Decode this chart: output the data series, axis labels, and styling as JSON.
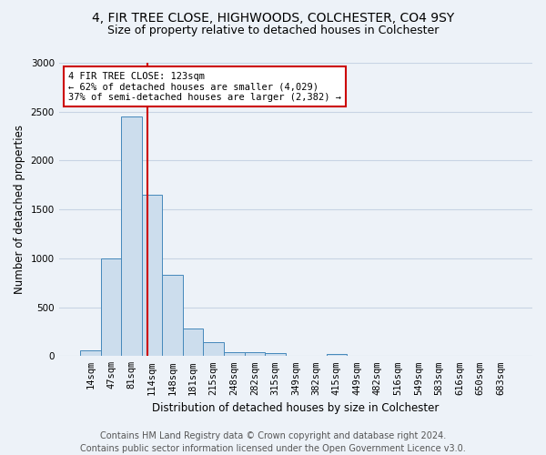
{
  "title": "4, FIR TREE CLOSE, HIGHWOODS, COLCHESTER, CO4 9SY",
  "subtitle": "Size of property relative to detached houses in Colchester",
  "xlabel": "Distribution of detached houses by size in Colchester",
  "ylabel": "Number of detached properties",
  "footer_line1": "Contains HM Land Registry data © Crown copyright and database right 2024.",
  "footer_line2": "Contains public sector information licensed under the Open Government Licence v3.0.",
  "bin_labels": [
    "14sqm",
    "47sqm",
    "81sqm",
    "114sqm",
    "148sqm",
    "181sqm",
    "215sqm",
    "248sqm",
    "282sqm",
    "315sqm",
    "349sqm",
    "382sqm",
    "415sqm",
    "449sqm",
    "482sqm",
    "516sqm",
    "549sqm",
    "583sqm",
    "616sqm",
    "650sqm",
    "683sqm"
  ],
  "bar_values": [
    55,
    1000,
    2450,
    1650,
    830,
    280,
    140,
    40,
    40,
    30,
    0,
    0,
    20,
    0,
    0,
    0,
    0,
    0,
    0,
    0,
    0
  ],
  "bar_color": "#ccdded",
  "bar_edge_color": "#4488bb",
  "grid_color": "#c8d4e4",
  "background_color": "#edf2f8",
  "vline_x_index": 2.77,
  "vline_color": "#cc0000",
  "annotation_text": "4 FIR TREE CLOSE: 123sqm\n← 62% of detached houses are smaller (4,029)\n37% of semi-detached houses are larger (2,382) →",
  "annotation_box_color": "#ffffff",
  "annotation_box_edge": "#cc0000",
  "ylim": [
    0,
    3000
  ],
  "yticks": [
    0,
    500,
    1000,
    1500,
    2000,
    2500,
    3000
  ],
  "title_fontsize": 10,
  "subtitle_fontsize": 9,
  "axis_label_fontsize": 8.5,
  "tick_fontsize": 7.5,
  "annotation_fontsize": 7.5,
  "footer_fontsize": 7
}
